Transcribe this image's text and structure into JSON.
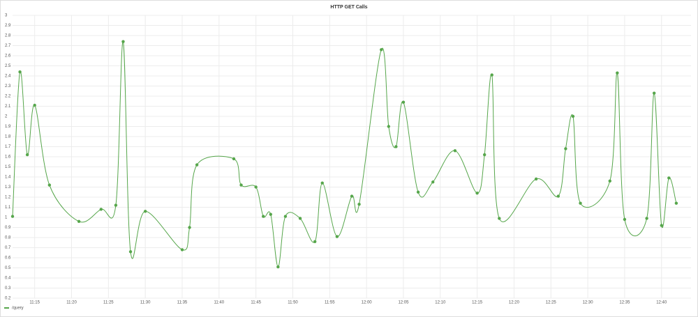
{
  "chart_data": {
    "type": "line",
    "title": "HTTP GET Calls",
    "x": [
      "11:12",
      "11:13",
      "11:14",
      "11:15",
      "11:17",
      "11:21",
      "11:24",
      "11:26",
      "11:27",
      "11:28",
      "11:30",
      "11:35",
      "11:36",
      "11:37",
      "11:42",
      "11:43",
      "11:45",
      "11:46",
      "11:47",
      "11:48",
      "11:49",
      "11:51",
      "11:53",
      "11:54",
      "11:56",
      "11:58",
      "11:59",
      "12:02",
      "12:03",
      "12:04",
      "12:05",
      "12:07",
      "12:09",
      "12:12",
      "12:15",
      "12:16",
      "12:17",
      "12:18",
      "12:23",
      "12:26",
      "12:27",
      "12:28",
      "12:29",
      "12:33",
      "12:34",
      "12:35",
      "12:38",
      "12:39",
      "12:40",
      "12:41",
      "12:42"
    ],
    "series": [
      {
        "name": "/query",
        "color": "#56a64b",
        "values": [
          1.01,
          2.44,
          1.62,
          2.11,
          1.32,
          0.96,
          1.08,
          1.12,
          2.74,
          0.66,
          1.06,
          0.68,
          0.9,
          1.52,
          1.58,
          1.32,
          1.3,
          1.01,
          1.03,
          0.51,
          1.01,
          0.99,
          0.76,
          1.34,
          0.81,
          1.21,
          1.13,
          2.66,
          1.9,
          1.7,
          2.14,
          1.25,
          1.35,
          1.66,
          1.24,
          1.62,
          2.41,
          0.99,
          1.38,
          1.21,
          1.68,
          2.0,
          1.14,
          1.36,
          2.43,
          0.98,
          0.99,
          2.23,
          0.92,
          1.39,
          1.14
        ]
      }
    ],
    "xlim": [
      "11:12",
      "12:44"
    ],
    "xticks": [
      "11:15",
      "11:20",
      "11:25",
      "11:30",
      "11:35",
      "11:40",
      "11:45",
      "11:50",
      "11:55",
      "12:00",
      "12:05",
      "12:10",
      "12:15",
      "12:20",
      "12:25",
      "12:30",
      "12:35",
      "12:40"
    ],
    "ylim": [
      0.2,
      3
    ],
    "yticks": [
      0.2,
      0.3,
      0.4,
      0.5,
      0.6,
      0.7,
      0.8,
      0.9,
      1,
      1.1,
      1.2,
      1.3,
      1.4,
      1.5,
      1.6,
      1.7,
      1.8,
      1.9,
      2,
      2.1,
      2.2,
      2.3,
      2.4,
      2.5,
      2.6,
      2.7,
      2.8,
      2.9,
      3
    ],
    "grid": true
  }
}
